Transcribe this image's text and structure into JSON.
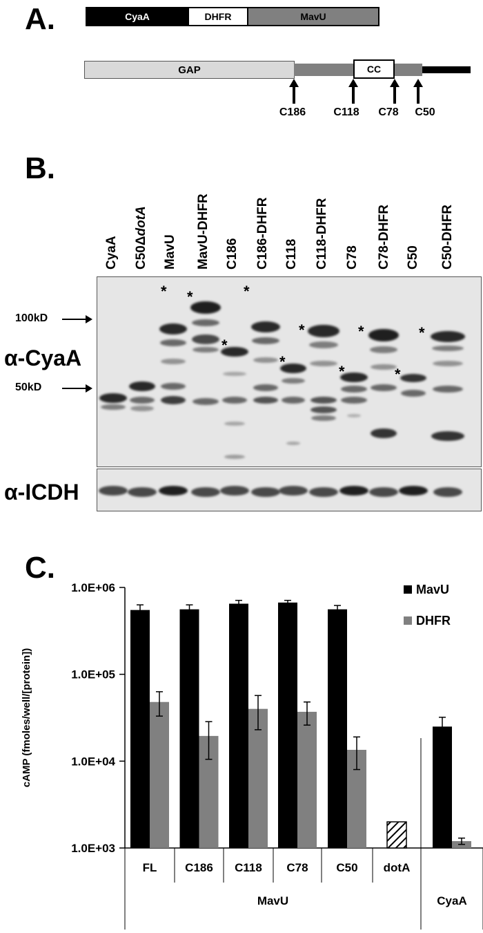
{
  "panel_a": {
    "label": "A.",
    "construct": [
      {
        "name": "CyaA",
        "fill": "#000000",
        "text_color": "#ffffff"
      },
      {
        "name": "DHFR",
        "fill": "#ffffff",
        "text_color": "#000000"
      },
      {
        "name": "MavU",
        "fill": "#808080",
        "text_color": "#000000"
      }
    ],
    "domains": [
      {
        "name": "GAP"
      },
      {
        "name": "CC"
      }
    ],
    "truncation_sites": [
      "C186",
      "C118",
      "C78",
      "C50"
    ]
  },
  "panel_b": {
    "label": "B.",
    "lanes": [
      {
        "prefix": "CyaA",
        "italic": ""
      },
      {
        "prefix": "C50Δ",
        "italic": "dotA"
      },
      {
        "prefix": "MavU",
        "italic": ""
      },
      {
        "prefix": "MavU-DHFR",
        "italic": ""
      },
      {
        "prefix": "C186",
        "italic": ""
      },
      {
        "prefix": "C186-DHFR",
        "italic": ""
      },
      {
        "prefix": "C118",
        "italic": ""
      },
      {
        "prefix": "C118-DHFR",
        "italic": ""
      },
      {
        "prefix": "C78",
        "italic": ""
      },
      {
        "prefix": "C78-DHFR",
        "italic": ""
      },
      {
        "prefix": "C50",
        "italic": ""
      },
      {
        "prefix": "C50-DHFR",
        "italic": ""
      }
    ],
    "markers": [
      "100kD",
      "50kD"
    ],
    "blot_labels": [
      "α-CyaA",
      "α-ICDH"
    ],
    "star": "*"
  },
  "panel_c": {
    "label": "C.",
    "chart_data": {
      "type": "bar",
      "ylabel": "cAMP (fmoles/well/[protein])",
      "yscale": "log",
      "ylim": [
        1000,
        1000000
      ],
      "yticks": [
        "1.0E+03",
        "1.0E+04",
        "1.0E+05",
        "1.0E+06"
      ],
      "ytick_values": [
        1000,
        10000,
        100000,
        1000000
      ],
      "categories": [
        "FL",
        "C186",
        "C118",
        "C78",
        "C50",
        "dotA",
        ""
      ],
      "group_labels": [
        {
          "text": "MavU",
          "span": [
            0,
            5
          ]
        },
        {
          "text": "CyaA",
          "span": [
            6,
            6
          ]
        }
      ],
      "series": [
        {
          "name": "MavU",
          "color": "#000000",
          "values": [
            550000,
            560000,
            650000,
            670000,
            560000,
            null,
            25000
          ],
          "errors": [
            80000,
            70000,
            60000,
            40000,
            60000,
            null,
            7000
          ]
        },
        {
          "name": "DHFR",
          "color": "#808080",
          "values": [
            48000,
            19500,
            40000,
            37000,
            13500,
            null,
            1200
          ],
          "errors": [
            15000,
            9000,
            17000,
            11000,
            5500,
            null,
            100
          ]
        },
        {
          "name": "",
          "color": "hatched",
          "values": [
            null,
            null,
            null,
            null,
            null,
            2000,
            null
          ],
          "errors": [
            null,
            null,
            null,
            null,
            null,
            null,
            null
          ]
        }
      ]
    }
  }
}
